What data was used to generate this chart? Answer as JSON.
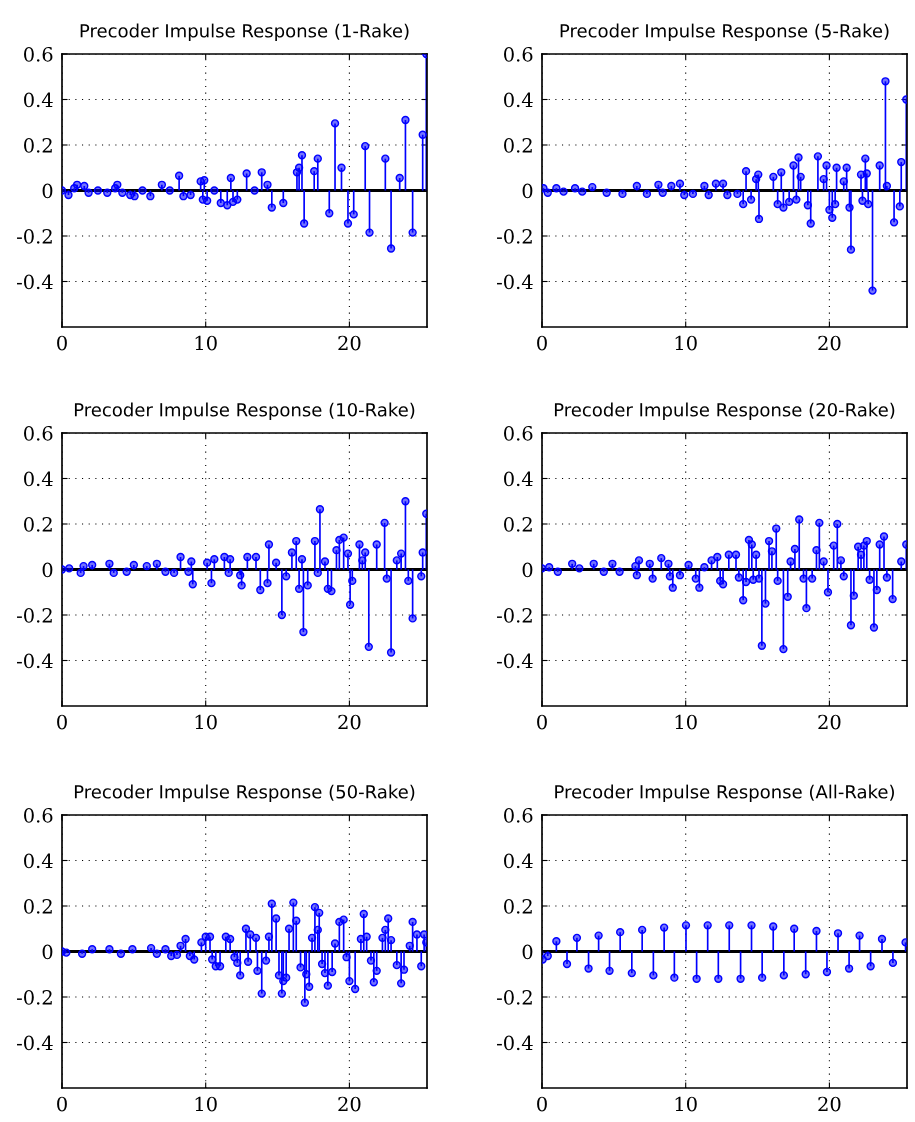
{
  "chart_data": [
    {
      "type": "lollipop",
      "title": "Precoder Impulse Response (1-Rake)",
      "xlim": [
        0,
        25.4
      ],
      "ylim": [
        -0.6,
        0.6
      ],
      "xticks": [
        0,
        10,
        20
      ],
      "yticks": [
        -0.4,
        -0.2,
        0,
        0.2,
        0.4,
        0.6
      ],
      "grid": true,
      "marker": "circle",
      "series": [
        {
          "color": "#0000ff",
          "x": [
            0,
            0.45,
            0.85,
            1.05,
            1.55,
            1.85,
            2.5,
            3.15,
            3.7,
            3.85,
            4.2,
            4.75,
            5.05,
            5.6,
            6.15,
            6.95,
            7.5,
            8.15,
            8.45,
            8.95,
            9.65,
            9.8,
            9.9,
            10.1,
            10.6,
            11.05,
            11.5,
            11.75,
            11.9,
            12.2,
            12.85,
            13.4,
            13.9,
            14.3,
            14.6,
            15.4,
            16.35,
            16.5,
            16.7,
            16.85,
            17.55,
            17.8,
            18.6,
            19.0,
            19.45,
            19.9,
            20.3,
            21.1,
            21.4,
            22.5,
            22.9,
            23.5,
            23.9,
            24.4,
            25.1,
            25.35
          ],
          "values": [
            0,
            -0.02,
            0.01,
            0.025,
            0.02,
            -0.01,
            0,
            -0.01,
            0.01,
            0.025,
            -0.01,
            -0.02,
            -0.025,
            0,
            -0.025,
            0.025,
            0,
            0.065,
            -0.025,
            -0.02,
            0.04,
            -0.04,
            0.045,
            -0.045,
            0,
            -0.055,
            -0.065,
            0.055,
            -0.05,
            -0.04,
            0.075,
            0,
            0.08,
            0.025,
            -0.075,
            -0.055,
            0.08,
            0.1,
            0.155,
            -0.145,
            0.085,
            0.14,
            -0.1,
            0.295,
            0.1,
            -0.145,
            -0.105,
            0.195,
            -0.185,
            0.14,
            -0.255,
            0.055,
            0.31,
            -0.185,
            0.245,
            0.6
          ]
        }
      ]
    },
    {
      "type": "lollipop",
      "title": "Precoder Impulse Response (5-Rake)",
      "xlim": [
        0,
        25.4
      ],
      "ylim": [
        -0.6,
        0.6
      ],
      "xticks": [
        0,
        10,
        20
      ],
      "yticks": [
        -0.4,
        -0.2,
        0,
        0.2,
        0.4,
        0.6
      ],
      "grid": true,
      "marker": "circle",
      "series": [
        {
          "color": "#0000ff",
          "x": [
            0.1,
            0.4,
            1.0,
            1.5,
            2.3,
            2.8,
            3.5,
            4.5,
            5.6,
            6.6,
            7.3,
            8.1,
            8.4,
            9.0,
            9.6,
            9.9,
            10.5,
            11.3,
            11.6,
            12.1,
            12.6,
            12.9,
            13.6,
            14.0,
            14.2,
            14.55,
            14.9,
            15.05,
            15.1,
            16.1,
            16.4,
            16.65,
            16.8,
            17.2,
            17.5,
            17.7,
            17.85,
            18.0,
            18.5,
            18.7,
            19.2,
            19.6,
            19.8,
            20.0,
            20.2,
            20.4,
            20.5,
            21.0,
            21.2,
            21.4,
            21.5,
            22.2,
            22.3,
            22.5,
            22.6,
            22.7,
            23.0,
            23.5,
            23.9,
            24.0,
            24.5,
            24.9,
            25.0,
            25.35
          ],
          "values": [
            0.01,
            -0.01,
            0.01,
            -0.005,
            0.01,
            -0.005,
            0.015,
            -0.01,
            -0.015,
            0.02,
            -0.015,
            0.025,
            -0.01,
            0.02,
            0.03,
            -0.02,
            -0.015,
            0.02,
            -0.02,
            0.03,
            0.03,
            -0.02,
            -0.015,
            -0.06,
            0.085,
            -0.04,
            0.05,
            0.07,
            -0.125,
            0.06,
            -0.06,
            0.08,
            -0.075,
            -0.05,
            0.11,
            -0.04,
            0.145,
            0.06,
            -0.065,
            -0.145,
            0.15,
            0.05,
            0.11,
            -0.085,
            -0.12,
            -0.06,
            0.1,
            0.04,
            0.1,
            -0.075,
            -0.26,
            0.07,
            -0.045,
            0.14,
            0.075,
            -0.06,
            -0.44,
            0.11,
            0.48,
            0.02,
            -0.14,
            -0.07,
            0.125,
            0.4
          ]
        }
      ]
    },
    {
      "type": "lollipop",
      "title": "Precoder Impulse Response (10-Rake)",
      "xlim": [
        0,
        25.4
      ],
      "ylim": [
        -0.6,
        0.6
      ],
      "xticks": [
        0,
        10,
        20
      ],
      "yticks": [
        -0.4,
        -0.2,
        0,
        0.2,
        0.4,
        0.6
      ],
      "grid": true,
      "marker": "circle",
      "series": [
        {
          "color": "#0000ff",
          "x": [
            0,
            0.5,
            1.3,
            1.5,
            2.1,
            3.3,
            3.6,
            4.5,
            5.0,
            5.9,
            6.6,
            7.2,
            7.8,
            8.25,
            8.8,
            9.0,
            9.1,
            10.1,
            10.4,
            10.6,
            11.3,
            11.6,
            11.7,
            12.4,
            12.5,
            12.9,
            13.5,
            13.8,
            14.3,
            14.4,
            14.9,
            15.3,
            15.6,
            16.0,
            16.3,
            16.5,
            16.7,
            16.8,
            17.1,
            17.6,
            17.8,
            17.95,
            18.3,
            18.5,
            18.75,
            19.1,
            19.3,
            19.6,
            19.9,
            20.05,
            20.2,
            20.7,
            20.9,
            21.1,
            21.35,
            21.9,
            22.45,
            22.6,
            22.9,
            23.3,
            23.6,
            23.9,
            24.1,
            24.4,
            25.0,
            25.1,
            25.35
          ],
          "values": [
            0,
            0.005,
            -0.015,
            0.015,
            0.02,
            0.025,
            -0.015,
            -0.01,
            0.02,
            0.015,
            0.025,
            -0.01,
            -0.015,
            0.055,
            -0.01,
            0.035,
            -0.065,
            0.03,
            -0.06,
            0.045,
            0.055,
            -0.015,
            0.045,
            -0.025,
            -0.07,
            0.055,
            0.055,
            -0.09,
            -0.06,
            0.11,
            0.03,
            -0.2,
            -0.03,
            0.075,
            0.125,
            -0.085,
            0.045,
            -0.275,
            -0.07,
            0.125,
            -0.015,
            0.265,
            0.035,
            -0.085,
            -0.095,
            0.085,
            0.13,
            0.14,
            0.07,
            -0.155,
            -0.05,
            0.11,
            0.04,
            0.075,
            -0.34,
            0.11,
            0.205,
            -0.04,
            -0.365,
            0.04,
            0.07,
            0.3,
            -0.05,
            -0.215,
            -0.03,
            0.075,
            0.245
          ]
        }
      ]
    },
    {
      "type": "lollipop",
      "title": "Precoder Impulse Response (20-Rake)",
      "xlim": [
        0,
        25.4
      ],
      "ylim": [
        -0.6,
        0.6
      ],
      "xticks": [
        0,
        10,
        20
      ],
      "yticks": [
        -0.4,
        -0.2,
        0,
        0.2,
        0.4,
        0.6
      ],
      "grid": true,
      "marker": "circle",
      "series": [
        {
          "color": "#0000ff",
          "x": [
            0,
            0.5,
            1.1,
            2.1,
            2.6,
            3.6,
            4.3,
            4.9,
            5.4,
            6.5,
            6.6,
            6.75,
            7.5,
            7.7,
            8.3,
            8.8,
            8.9,
            9.1,
            9.6,
            10.2,
            10.7,
            10.95,
            11.3,
            11.8,
            12.2,
            12.4,
            12.6,
            13.0,
            13.5,
            13.7,
            14.0,
            14.2,
            14.4,
            14.6,
            14.7,
            14.9,
            15.1,
            15.3,
            15.55,
            15.8,
            16.0,
            16.3,
            16.4,
            16.8,
            17.1,
            17.3,
            17.6,
            17.9,
            18.2,
            18.4,
            18.8,
            19.1,
            19.3,
            19.6,
            19.9,
            20.3,
            20.55,
            20.8,
            21.0,
            21.5,
            21.7,
            22.0,
            22.2,
            22.4,
            22.6,
            22.8,
            23.1,
            23.3,
            23.5,
            23.8,
            24.0,
            24.4,
            25.0,
            25.35
          ],
          "values": [
            0.005,
            0.01,
            -0.01,
            0.025,
            0.005,
            0.025,
            -0.01,
            0.025,
            -0.01,
            0.015,
            -0.025,
            0.04,
            0.025,
            -0.04,
            0.05,
            0.025,
            -0.03,
            -0.08,
            -0.025,
            0.02,
            -0.04,
            -0.08,
            0.01,
            0.04,
            0.055,
            -0.05,
            -0.065,
            0.065,
            0.065,
            -0.035,
            -0.135,
            -0.055,
            0.13,
            0.11,
            -0.045,
            0.065,
            -0.04,
            -0.335,
            -0.15,
            0.125,
            0.08,
            0.18,
            -0.05,
            -0.35,
            -0.12,
            0.035,
            0.09,
            0.22,
            -0.04,
            -0.17,
            -0.04,
            0.085,
            0.205,
            0.035,
            -0.1,
            0.105,
            0.2,
            0.04,
            -0.03,
            -0.245,
            -0.115,
            0.1,
            0.065,
            0.105,
            0.125,
            -0.045,
            -0.255,
            -0.09,
            0.11,
            0.145,
            -0.035,
            -0.13,
            0.035,
            0.11
          ]
        }
      ]
    },
    {
      "type": "lollipop",
      "title": "Precoder Impulse Response (50-Rake)",
      "xlim": [
        0,
        25.4
      ],
      "ylim": [
        -0.6,
        0.6
      ],
      "xticks": [
        0,
        10,
        20
      ],
      "yticks": [
        -0.4,
        -0.2,
        0,
        0.2,
        0.4,
        0.6
      ],
      "grid": true,
      "marker": "circle",
      "series": [
        {
          "color": "#0000ff",
          "x": [
            0,
            0.3,
            1.4,
            2.1,
            3.3,
            4.1,
            4.9,
            6.2,
            6.6,
            7.2,
            7.6,
            8.0,
            8.25,
            8.6,
            8.9,
            9.2,
            9.7,
            10.0,
            10.3,
            10.45,
            10.7,
            11.0,
            11.4,
            11.7,
            12.0,
            12.2,
            12.4,
            12.8,
            12.95,
            13.1,
            13.5,
            13.6,
            13.9,
            14.2,
            14.4,
            14.6,
            14.9,
            15.1,
            15.3,
            15.4,
            15.6,
            15.8,
            16.1,
            16.3,
            16.6,
            16.9,
            17.0,
            17.2,
            17.4,
            17.6,
            17.8,
            17.9,
            18.1,
            18.3,
            18.5,
            18.8,
            19.0,
            19.3,
            19.6,
            19.8,
            20.0,
            20.4,
            20.8,
            21.0,
            21.2,
            21.5,
            21.7,
            21.9,
            22.3,
            22.5,
            22.7,
            22.9,
            23.3,
            23.6,
            23.8,
            24.2,
            24.4,
            24.7,
            25.0,
            25.2,
            25.35
          ],
          "values": [
            0,
            -0.005,
            -0.01,
            0.01,
            0.01,
            -0.01,
            0.01,
            0.015,
            -0.01,
            0.01,
            -0.02,
            -0.015,
            0.025,
            0.055,
            -0.02,
            -0.035,
            0.04,
            0.065,
            0.065,
            -0.035,
            -0.065,
            -0.065,
            0.065,
            0.055,
            -0.025,
            -0.05,
            -0.105,
            0.1,
            -0.045,
            0.075,
            0.06,
            -0.085,
            -0.185,
            -0.04,
            0.065,
            0.21,
            0.145,
            -0.105,
            -0.185,
            -0.13,
            -0.115,
            0.1,
            0.215,
            0.135,
            -0.07,
            -0.225,
            -0.1,
            -0.155,
            0.06,
            0.195,
            0.095,
            0.17,
            -0.055,
            -0.095,
            -0.15,
            -0.09,
            0.035,
            0.13,
            0.14,
            -0.025,
            -0.13,
            -0.165,
            0.055,
            0.165,
            0.065,
            -0.04,
            -0.135,
            -0.085,
            0.06,
            0.095,
            0.145,
            0.05,
            -0.06,
            -0.14,
            -0.08,
            0.025,
            0.13,
            0.075,
            -0.065,
            0.075,
            0.04
          ]
        }
      ]
    },
    {
      "type": "lollipop",
      "title": "Precoder Impulse Response (All-Rake)",
      "xlim": [
        0,
        25.4
      ],
      "ylim": [
        -0.6,
        0.6
      ],
      "xticks": [
        0,
        10,
        20
      ],
      "yticks": [
        -0.4,
        -0.2,
        0,
        0.2,
        0.4,
        0.6
      ],
      "grid": true,
      "marker": "circle",
      "series": [
        {
          "color": "#0000ff",
          "x": [
            0.05,
            0.4,
            1.0,
            1.74,
            2.43,
            3.24,
            3.94,
            4.7,
            5.44,
            6.25,
            6.97,
            7.75,
            8.5,
            9.21,
            10.02,
            10.76,
            11.53,
            12.27,
            13.03,
            13.82,
            14.58,
            15.32,
            16.09,
            16.83,
            17.55,
            18.35,
            19.1,
            19.83,
            20.6,
            21.37,
            22.1,
            22.87,
            23.66,
            24.42,
            25.3
          ],
          "values": [
            -0.035,
            -0.02,
            0.045,
            -0.055,
            0.06,
            -0.075,
            0.07,
            -0.085,
            0.085,
            -0.095,
            0.095,
            -0.105,
            0.105,
            -0.115,
            0.115,
            -0.12,
            0.115,
            -0.12,
            0.115,
            -0.12,
            0.115,
            -0.115,
            0.11,
            -0.105,
            0.1,
            -0.1,
            0.09,
            -0.09,
            0.08,
            -0.075,
            0.07,
            -0.065,
            0.055,
            -0.05,
            0.04
          ]
        }
      ]
    }
  ]
}
